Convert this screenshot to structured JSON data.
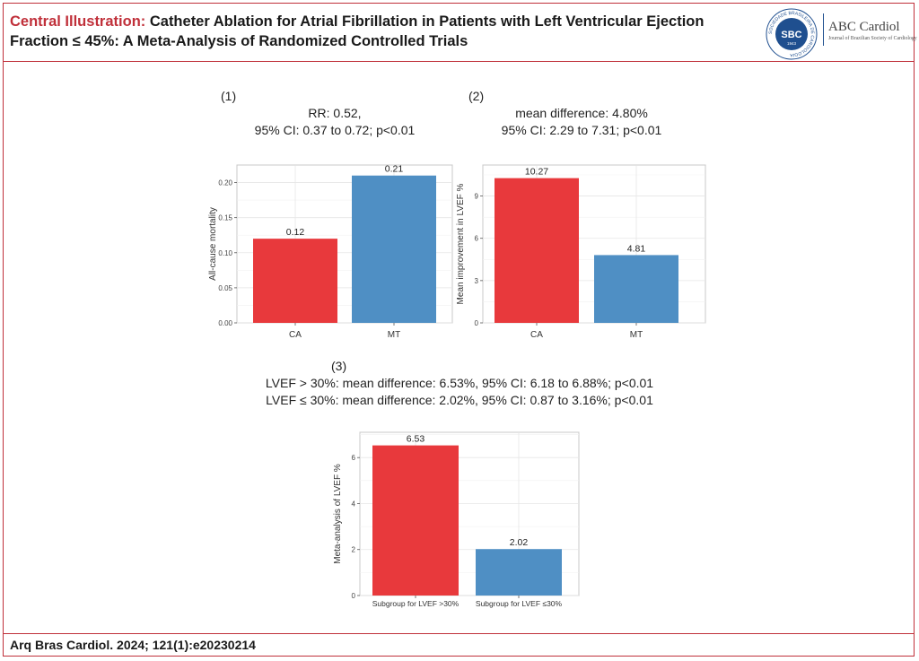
{
  "header": {
    "title_prefix": "Central Illustration:",
    "title_rest": " Catheter Ablation for Atrial Fibrillation in Patients with Left Ventricular Ejection Fraction ≤ 45%: A Meta-Analysis of Randomized Controlled Trials",
    "logo_ring_text": "SOCIEDADE BRASILEIRA DE CARDIOLOGIA",
    "logo_abbr": "SBC",
    "logo_year": "1943",
    "journal_name": "ABC Cardiol",
    "journal_subtitle": "Journal of Brazilian Society of Cardiology"
  },
  "panels": [
    {
      "label": "(1)",
      "stat_line1": "RR: 0.52,",
      "stat_line2": "95% CI: 0.37 to 0.72; p<0.01"
    },
    {
      "label": "(2)",
      "stat_line1": "mean difference: 4.80%",
      "stat_line2": "95% CI: 2.29 to 7.31; p<0.01"
    },
    {
      "label": "(3)",
      "stat_line1": "LVEF > 30%: mean difference: 6.53%, 95% CI: 6.18 to 6.88%; p<0.01",
      "stat_line2": "LVEF ≤ 30%: mean difference: 2.02%, 95% CI: 0.87 to 3.16%; p<0.01"
    }
  ],
  "colors": {
    "red": "#e8393c",
    "blue": "#4f8fc4",
    "accent": "#c0303a"
  },
  "chart_data": [
    {
      "type": "bar",
      "categories": [
        "CA",
        "MT"
      ],
      "values": [
        0.12,
        0.21
      ],
      "value_labels": [
        "0.12",
        "0.21"
      ],
      "colors": [
        "#e8393c",
        "#4f8fc4"
      ],
      "ylabel": "All-cause mortality",
      "xlabel": "",
      "ylim": [
        0,
        0.225
      ],
      "yticks": [
        0.0,
        0.05,
        0.1,
        0.15,
        0.2
      ],
      "ytick_labels": [
        "0.00",
        "0.05",
        "0.10",
        "0.15",
        "0.20"
      ],
      "grid": true
    },
    {
      "type": "bar",
      "categories": [
        "CA",
        "MT"
      ],
      "values": [
        10.27,
        4.81
      ],
      "value_labels": [
        "10.27",
        "4.81"
      ],
      "colors": [
        "#e8393c",
        "#4f8fc4"
      ],
      "ylabel": "Mean improvement in LVEF %",
      "xlabel": "",
      "ylim": [
        0,
        11.2
      ],
      "yticks": [
        0,
        3,
        6,
        9
      ],
      "ytick_labels": [
        "0",
        "3",
        "6",
        "9"
      ],
      "grid": true
    },
    {
      "type": "bar",
      "categories": [
        "Subgroup for LVEF >30%",
        "Subgroup for LVEF ≤30%"
      ],
      "values": [
        6.53,
        2.02
      ],
      "value_labels": [
        "6.53",
        "2.02"
      ],
      "colors": [
        "#e8393c",
        "#4f8fc4"
      ],
      "ylabel": "Meta-analysis of LVEF %",
      "xlabel": "",
      "ylim": [
        0,
        7.1
      ],
      "yticks": [
        0,
        2,
        4,
        6
      ],
      "ytick_labels": [
        "0",
        "2",
        "4",
        "6"
      ],
      "grid": true
    }
  ],
  "footer": {
    "citation": "Arq Bras Cardiol. 2024; 121(1):e20230214"
  }
}
